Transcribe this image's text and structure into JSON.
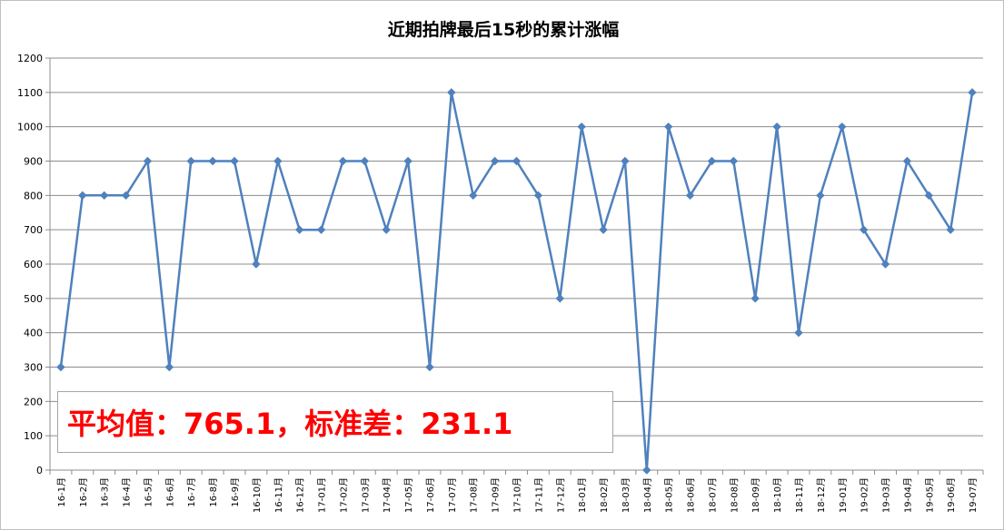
{
  "chart_data": {
    "type": "line",
    "title": "近期拍牌最后15秒的累计涨幅",
    "xlabel": "",
    "ylabel": "",
    "ylim": [
      0,
      1200
    ],
    "yticks": [
      0,
      100,
      200,
      300,
      400,
      500,
      600,
      700,
      800,
      900,
      1000,
      1100,
      1200
    ],
    "grid": true,
    "legend": "none",
    "line_color": "#4f81bd",
    "categories": [
      "16-1月",
      "16-2月",
      "16-3月",
      "16-4月",
      "16-5月",
      "16-6月",
      "16-7月",
      "16-8月",
      "16-9月",
      "16-10月",
      "16-11月",
      "16-12月",
      "17-01月",
      "17-02月",
      "17-03月",
      "17-04月",
      "17-05月",
      "17-06月",
      "17-07月",
      "17-08月",
      "17-09月",
      "17-10月",
      "17-11月",
      "17-12月",
      "18-01月",
      "18-02月",
      "18-03月",
      "18-04月",
      "18-05月",
      "18-06月",
      "18-07月",
      "18-08月",
      "18-09月",
      "18-10月",
      "18-11月",
      "18-12月",
      "19-01月",
      "19-02月",
      "19-03月",
      "19-04月",
      "19-05月",
      "19-06月",
      "19-07月"
    ],
    "values": [
      300,
      800,
      800,
      800,
      900,
      300,
      900,
      900,
      900,
      600,
      900,
      700,
      700,
      900,
      900,
      700,
      900,
      300,
      1100,
      800,
      900,
      900,
      800,
      500,
      1000,
      700,
      900,
      0,
      1000,
      800,
      900,
      900,
      500,
      1000,
      400,
      800,
      1000,
      700,
      600,
      900,
      800,
      700,
      1100
    ]
  },
  "stats": {
    "text": "平均值：765.1，标准差：231.1",
    "color": "#ff0000"
  }
}
